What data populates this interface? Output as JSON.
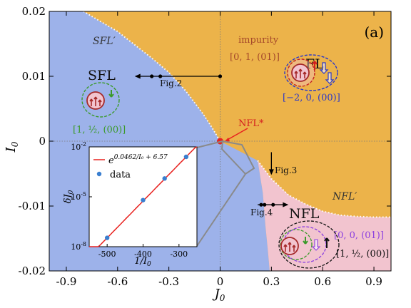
{
  "chart_data": {
    "type": "phase-diagram",
    "panel_label": "(a)",
    "xlabel": "J",
    "xlabel_sub": "0",
    "ylabel": "I",
    "ylabel_sub": "0",
    "xlim": [
      -1.0,
      1.0
    ],
    "ylim": [
      -0.02,
      0.02
    ],
    "x_ticks": [
      {
        "v": -0.9,
        "label": "-0.9"
      },
      {
        "v": -0.6,
        "label": "-0.6"
      },
      {
        "v": -0.3,
        "label": "-0.3"
      },
      {
        "v": 0,
        "label": "0"
      },
      {
        "v": 0.3,
        "label": "0.3"
      },
      {
        "v": 0.6,
        "label": "0.6"
      },
      {
        "v": 0.9,
        "label": "0.9"
      }
    ],
    "y_ticks": [
      {
        "v": -0.02,
        "label": "-0.02"
      },
      {
        "v": -0.01,
        "label": "-0.01"
      },
      {
        "v": 0,
        "label": "0"
      },
      {
        "v": 0.01,
        "label": "0.01"
      },
      {
        "v": 0.02,
        "label": "0.02"
      }
    ],
    "regions": [
      {
        "name": "FL",
        "color": "#ecb34a"
      },
      {
        "name": "SFL",
        "color": "#9db2ea"
      },
      {
        "name": "NFL",
        "color": "#f2c4cf"
      }
    ],
    "phase_boundaries": {
      "sfl_fl": [
        [
          -0.8,
          0.02
        ],
        [
          -0.6,
          0.0169
        ],
        [
          -0.4,
          0.0128
        ],
        [
          -0.3,
          0.0106
        ],
        [
          -0.2,
          0.0077
        ],
        [
          -0.1,
          0.0042
        ],
        [
          -0.05,
          0.0022
        ],
        [
          0,
          0
        ]
      ],
      "fl_nfl": [
        [
          0.22,
          -0.003
        ],
        [
          0.3,
          -0.0058
        ],
        [
          0.4,
          -0.0083
        ],
        [
          0.5,
          -0.0097
        ],
        [
          0.6,
          -0.0108
        ],
        [
          0.7,
          -0.0114
        ],
        [
          0.8,
          -0.0116
        ],
        [
          0.9,
          -0.0117
        ],
        [
          1.0,
          -0.0117
        ]
      ],
      "sfl_nfl": [
        [
          0.22,
          -0.003
        ],
        [
          0.25,
          -0.008
        ],
        [
          0.265,
          -0.013
        ],
        [
          0.28,
          -0.017
        ],
        [
          0.29,
          -0.02
        ]
      ]
    },
    "labels": {
      "sfl_prime": "SFL′",
      "nfl_prime": "NFL′",
      "sfl": "SFL",
      "fl": "FL",
      "nfl": "NFL",
      "nfl_star": "NFL*",
      "impurity": "impurity",
      "q_impurity": "[0, 1, (01)]",
      "q_fl": "[−2, 0, (00)]",
      "q_sfl": "[1, ½, (00)]",
      "q_nfl_1": "[0, 0, (01)]",
      "q_nfl_2": "[1, ½, (00)]",
      "fig2": "Fig.2",
      "fig3": "Fig.3",
      "fig4": "Fig.4"
    },
    "critical_point": {
      "x": 0,
      "y": 0,
      "color": "#e8221f"
    },
    "cuts": {
      "fig2": {
        "y": 0.01,
        "x_from": 0,
        "x_to": -0.5,
        "points": [
          -0.4,
          -0.35,
          0
        ]
      },
      "fig3": {
        "x": 0.3,
        "y_from": -0.0017,
        "y_to": -0.0052,
        "points": [
          -0.0052
        ]
      },
      "fig4": {
        "y": -0.0098,
        "x_from": 0.22,
        "x_to": 0.4,
        "points": [
          0.24,
          0.26,
          0.31
        ]
      }
    },
    "inset": {
      "type": "scatter+line",
      "xlabel": "1/I",
      "xlabel_sub": "0",
      "ylabel": "δJ",
      "ylabel_sub": "0",
      "xlim": [
        -550,
        -250
      ],
      "ylog": true,
      "ylim_exp": [
        -8,
        -2
      ],
      "x_ticks": [
        {
          "v": -500,
          "label": "-500"
        },
        {
          "v": -400,
          "label": "-400"
        },
        {
          "v": -300,
          "label": "-300"
        }
      ],
      "y_ticks": [
        {
          "e": -8,
          "label": "10",
          "sup": "-8"
        },
        {
          "e": -5,
          "label": "10",
          "sup": "-5"
        },
        {
          "e": -2,
          "label": "10",
          "sup": "-2"
        }
      ],
      "fit": {
        "a": 0.0462,
        "b": 6.57,
        "label_base": "e",
        "label_exp": "0.0462/I₀ + 6.57",
        "color": "#e8221f"
      },
      "data_label": "data",
      "data_color": "#3a7fd0",
      "points": [
        {
          "x": -500,
          "e": -7.47
        },
        {
          "x": -400,
          "e": -5.2
        },
        {
          "x": -340,
          "e": -3.9
        },
        {
          "x": -280,
          "e": -2.6
        }
      ]
    }
  }
}
